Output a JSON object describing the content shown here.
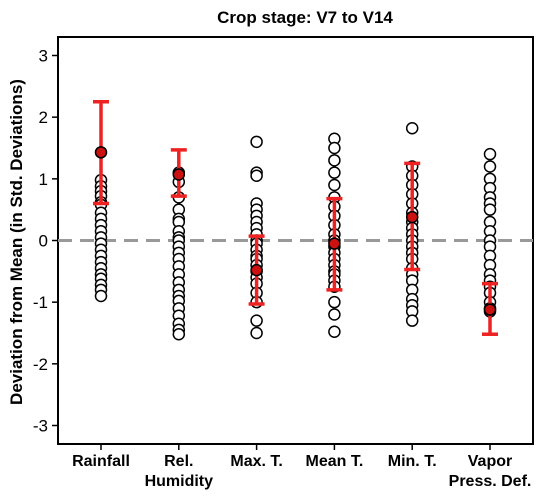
{
  "chart_data": {
    "type": "scatter",
    "title": "Crop stage: V7 to V14",
    "ylabel": "Deviation from Mean (in Std. Deviations)",
    "xlabel": "",
    "ylim": [
      -3.3,
      3.3
    ],
    "yticks": [
      -3,
      -2,
      -1,
      0,
      1,
      2,
      3
    ],
    "reference_line": 0,
    "categories": [
      {
        "line1": "Rainfall",
        "line2": ""
      },
      {
        "line1": "Rel.",
        "line2": "Humidity"
      },
      {
        "line1": "Max. T.",
        "line2": ""
      },
      {
        "line1": "Mean T.",
        "line2": ""
      },
      {
        "line1": "Min. T.",
        "line2": ""
      },
      {
        "line1": "Vapor",
        "line2": "Press. Def."
      }
    ],
    "points": [
      [
        0.98,
        0.88,
        0.8,
        0.72,
        0.62,
        0.58,
        0.45,
        0.35,
        0.25,
        0.15,
        0.05,
        -0.05,
        -0.15,
        -0.25,
        -0.35,
        -0.45,
        -0.55,
        -0.62,
        -0.72,
        -0.8,
        -0.9
      ],
      [
        1.1,
        0.95,
        0.7,
        0.5,
        0.35,
        0.3,
        0.15,
        0.05,
        0.0,
        -0.1,
        -0.2,
        -0.3,
        -0.42,
        -0.55,
        -0.68,
        -0.8,
        -0.9,
        -0.98,
        -1.1,
        -1.22,
        -1.35,
        -1.45,
        -1.52
      ],
      [
        1.6,
        1.1,
        1.05,
        0.6,
        0.5,
        0.4,
        0.3,
        0.2,
        0.1,
        0.0,
        -0.05,
        -0.15,
        -0.25,
        -0.3,
        -0.4,
        -0.5,
        -0.6,
        -0.7,
        -0.85,
        -1.0,
        -1.3,
        -1.5
      ],
      [
        1.65,
        1.5,
        1.3,
        1.1,
        0.9,
        0.7,
        0.55,
        0.4,
        0.25,
        0.1,
        0.0,
        -0.1,
        -0.2,
        -0.3,
        -0.4,
        -0.5,
        -0.55,
        -0.65,
        -0.75,
        -1.0,
        -1.2,
        -1.48
      ],
      [
        1.82,
        1.2,
        1.05,
        0.9,
        0.75,
        0.6,
        0.45,
        0.3,
        0.2,
        0.1,
        0.0,
        -0.1,
        -0.2,
        -0.3,
        -0.45,
        -0.55,
        -0.65,
        -0.8,
        -0.95,
        -1.05,
        -1.15,
        -1.3
      ],
      [
        1.4,
        1.2,
        1.0,
        0.85,
        0.7,
        0.6,
        0.5,
        0.3,
        0.15,
        0.0,
        -0.1,
        -0.25,
        -0.4,
        -0.55,
        -0.65,
        -0.75,
        -0.85,
        -1.0,
        -1.1,
        -1.15
      ]
    ],
    "highlight": [
      1.43,
      1.07,
      -0.48,
      -0.05,
      0.38,
      -1.12
    ],
    "error_bars": [
      {
        "low": 0.6,
        "high": 2.25
      },
      {
        "low": 0.72,
        "high": 1.47
      },
      {
        "low": -1.03,
        "high": 0.07
      },
      {
        "low": -0.8,
        "high": 0.68
      },
      {
        "low": -0.47,
        "high": 1.25
      },
      {
        "low": -1.52,
        "high": -0.7
      }
    ],
    "colors": {
      "points_fill": "#ffffff",
      "points_stroke": "#000000",
      "highlight_fill": "#cc1111",
      "error_bar": "#ee2222",
      "reference_line": "#999999",
      "axis": "#000000"
    }
  }
}
